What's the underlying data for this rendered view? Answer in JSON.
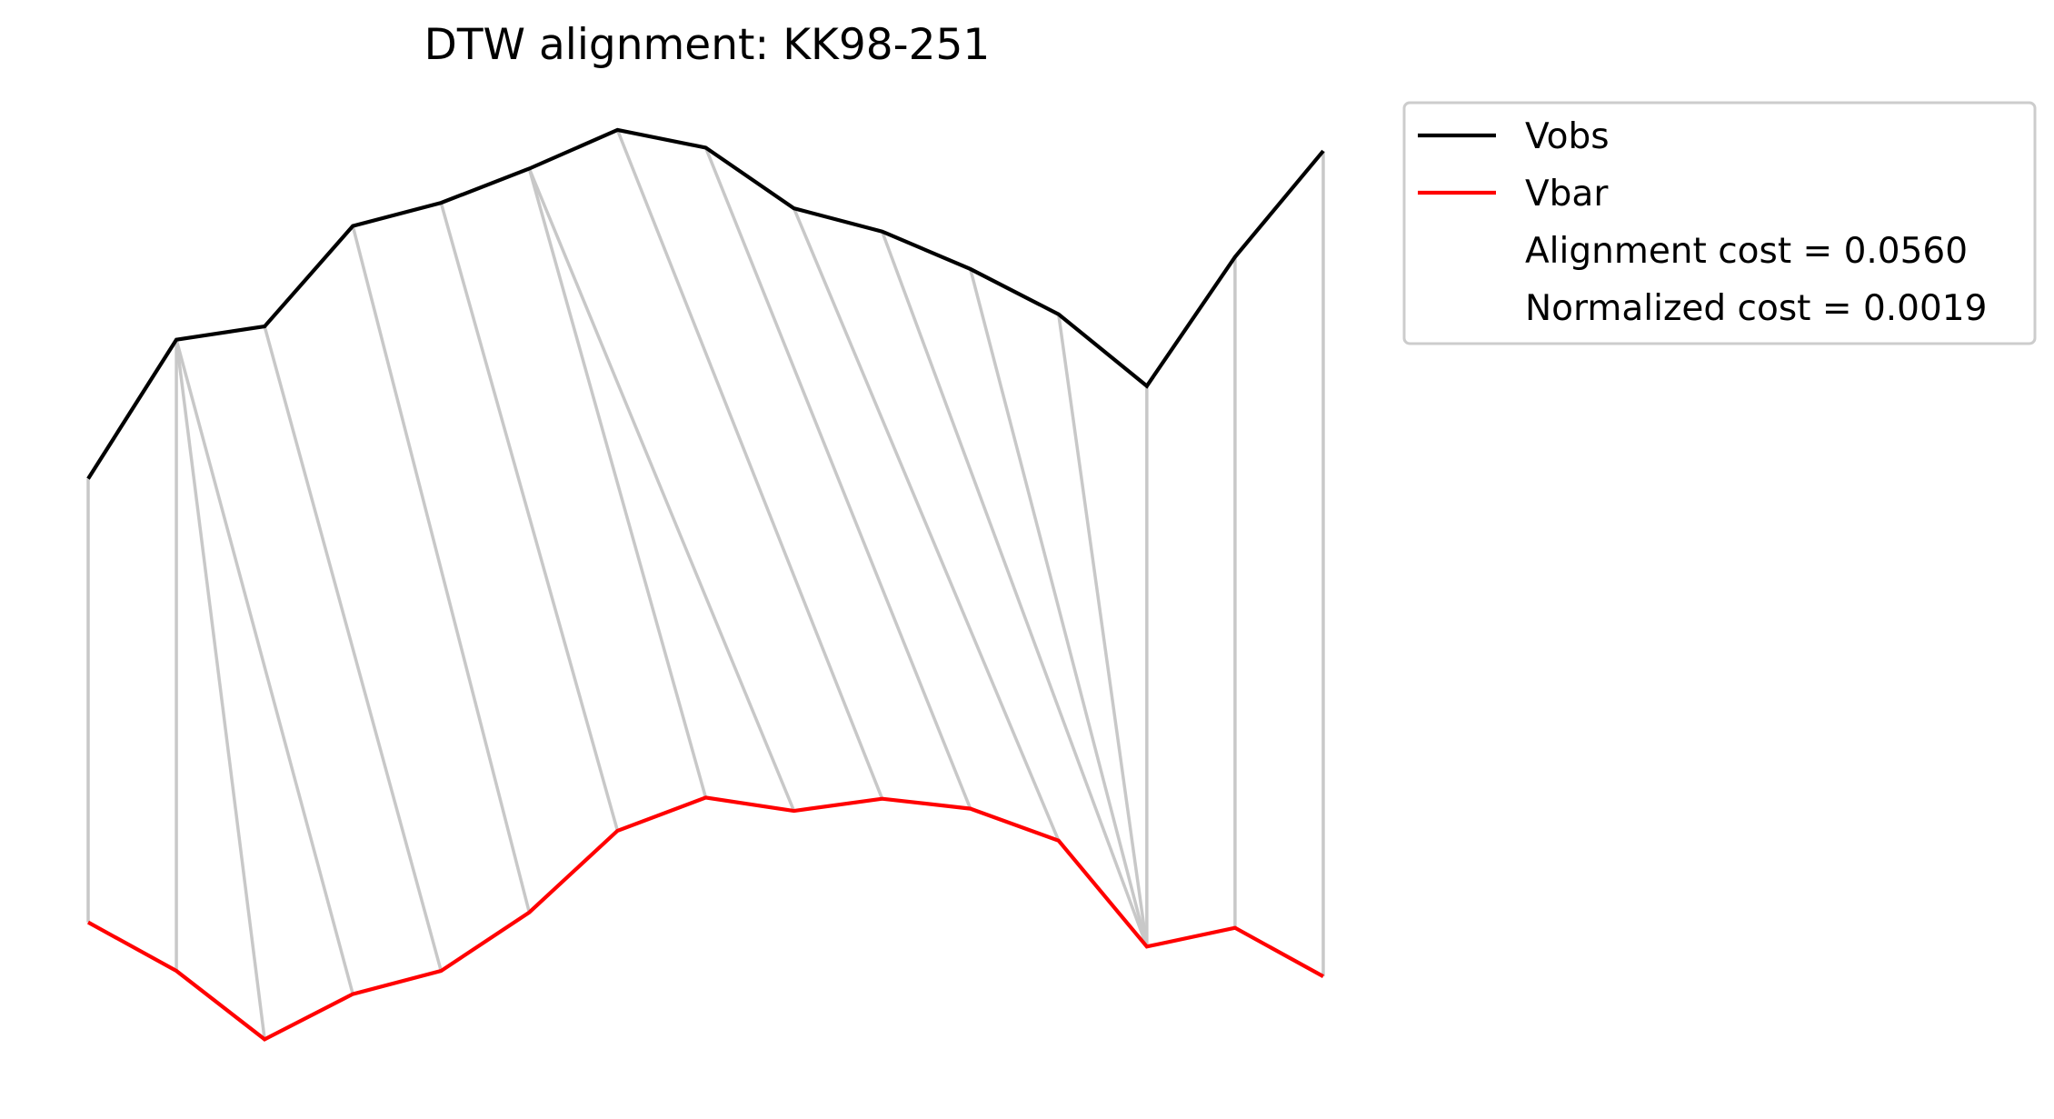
{
  "chart_data": {
    "type": "line",
    "title": "DTW alignment: KK98-251",
    "xlabel": "",
    "ylabel": "",
    "axes_visible": false,
    "grid": false,
    "legend_placement": "outside-top-right",
    "x": [
      0,
      1,
      2,
      3,
      4,
      5,
      6,
      7,
      8,
      9,
      10,
      11,
      12,
      13,
      14
    ],
    "series": [
      {
        "name": "Vobs",
        "color": "#000000",
        "values": [
          1.64,
          2.9,
          3.02,
          3.93,
          4.14,
          4.45,
          4.8,
          4.64,
          4.09,
          3.88,
          3.54,
          3.13,
          2.48,
          3.65,
          4.61
        ]
      },
      {
        "name": "Vbar",
        "color": "#ff0000",
        "values": [
          -2.38,
          -2.82,
          -3.44,
          -3.03,
          -2.82,
          -2.29,
          -1.55,
          -1.25,
          -1.37,
          -1.26,
          -1.35,
          -1.64,
          -2.6,
          -2.43,
          -2.87
        ]
      }
    ],
    "alignment_color": "#c8c8c8",
    "alignment_path": [
      [
        0,
        0
      ],
      [
        1,
        1
      ],
      [
        1,
        2
      ],
      [
        1,
        3
      ],
      [
        2,
        4
      ],
      [
        3,
        5
      ],
      [
        4,
        6
      ],
      [
        5,
        7
      ],
      [
        5,
        8
      ],
      [
        6,
        9
      ],
      [
        7,
        10
      ],
      [
        8,
        11
      ],
      [
        9,
        12
      ],
      [
        10,
        12
      ],
      [
        11,
        12
      ],
      [
        12,
        12
      ],
      [
        13,
        13
      ],
      [
        14,
        14
      ]
    ],
    "legend_entries": [
      {
        "label": "Vobs",
        "color": "#000000",
        "has_line": true
      },
      {
        "label": "Vbar",
        "color": "#ff0000",
        "has_line": true
      },
      {
        "label": "Alignment cost = 0.0560",
        "has_line": false
      },
      {
        "label": "Normalized cost = 0.0019",
        "has_line": false
      }
    ]
  }
}
